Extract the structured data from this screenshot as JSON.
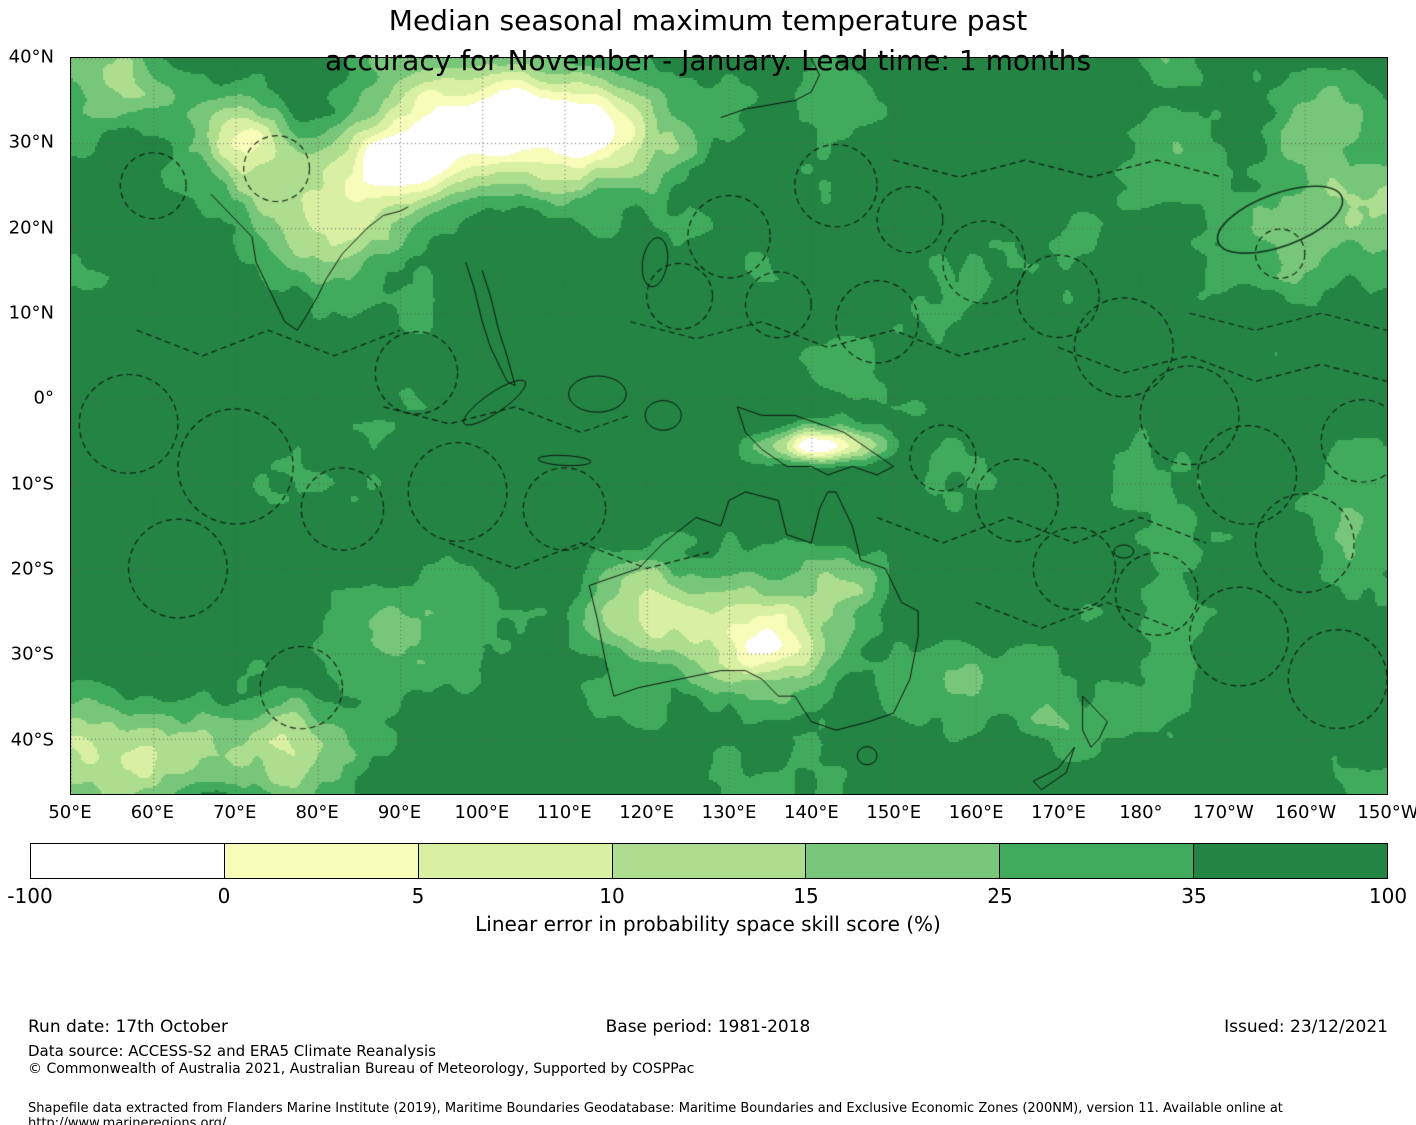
{
  "title": {
    "line1": "Median seasonal maximum temperature past",
    "line2": "accuracy for November - January. Lead time: 1 months"
  },
  "map": {
    "x_ticks": [
      "50°E",
      "60°E",
      "70°E",
      "80°E",
      "90°E",
      "100°E",
      "110°E",
      "120°E",
      "130°E",
      "140°E",
      "150°E",
      "160°E",
      "170°E",
      "180°",
      "170°W",
      "160°W",
      "150°W"
    ],
    "y_ticks": [
      "40°N",
      "30°N",
      "20°N",
      "10°N",
      "0°",
      "10°S",
      "20°S",
      "30°S",
      "40°S"
    ]
  },
  "colorbar": {
    "label": "Linear error in probability space skill score (%)",
    "ticks": [
      "-100",
      "0",
      "5",
      "10",
      "15",
      "25",
      "35",
      "100"
    ],
    "colors": [
      "#ffffff",
      "#f7fcb9",
      "#d9f0a3",
      "#addd8e",
      "#78c679",
      "#41ab5d",
      "#238443"
    ]
  },
  "footer": {
    "run_date": "Run date: 17th October",
    "base_period": "Base period: 1981-2018",
    "issued": "Issued: 23/12/2021",
    "data_source": "Data source: ACCESS-S2 and ERA5 Climate Reanalysis",
    "copyright": "© Commonwealth of Australia 2021, Australian Bureau of Meteorology, Supported by COSPPac",
    "shapefile_note": "Shapefile data extracted from Flanders Marine Institute (2019), Maritime Boundaries Geodatabase: Maritime Boundaries and Exclusive Economic Zones (200NM), version 11. Available online at http://www.marineregions.org/."
  }
}
